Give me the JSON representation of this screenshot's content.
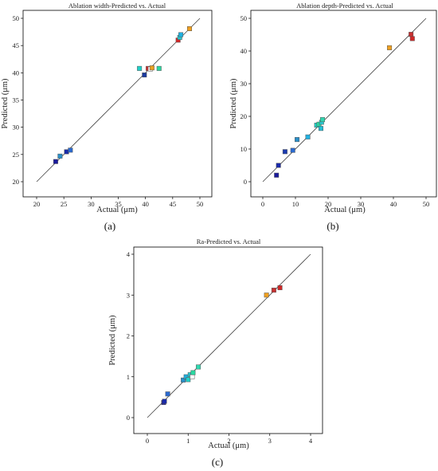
{
  "chart_data": [
    {
      "type": "scatter",
      "panel_label": "(a)",
      "title": "Ablation width-Predicted vs. Actual",
      "xlabel": "Actual (μm)",
      "ylabel": "Predicted (μm)",
      "xlim": [
        20,
        50
      ],
      "ylim": [
        20,
        50
      ],
      "xticks": [
        "20",
        "25",
        "30",
        "35",
        "40",
        "45",
        "50"
      ],
      "yticks": [
        "20",
        "25",
        "30",
        "35",
        "40",
        "45",
        "50"
      ],
      "grid": false,
      "reference_line": [
        [
          20,
          20
        ],
        [
          50,
          50
        ]
      ],
      "points": [
        {
          "x": 23.5,
          "y": 23.7,
          "color": "#1a1a9c"
        },
        {
          "x": 24.3,
          "y": 24.7,
          "color": "#2a8fc8"
        },
        {
          "x": 25.5,
          "y": 25.5,
          "color": "#1a2aa8"
        },
        {
          "x": 26.2,
          "y": 25.8,
          "color": "#2a6ad0"
        },
        {
          "x": 38.9,
          "y": 40.8,
          "color": "#20d0c8"
        },
        {
          "x": 39.8,
          "y": 39.6,
          "color": "#1a3aa0"
        },
        {
          "x": 40.5,
          "y": 40.8,
          "color": "#c83030"
        },
        {
          "x": 40.9,
          "y": 40.7,
          "color": "#ffffff"
        },
        {
          "x": 41.2,
          "y": 40.9,
          "color": "#e8a020"
        },
        {
          "x": 42.5,
          "y": 40.8,
          "color": "#2ad8a0"
        },
        {
          "x": 46.0,
          "y": 46.0,
          "color": "#d02828"
        },
        {
          "x": 46.3,
          "y": 46.5,
          "color": "#28c8d0"
        },
        {
          "x": 46.5,
          "y": 47.0,
          "color": "#20b0e0"
        },
        {
          "x": 48.1,
          "y": 48.1,
          "color": "#f0a020"
        }
      ]
    },
    {
      "type": "scatter",
      "panel_label": "(b)",
      "title": "Ablation depth-Predicted vs. Actual",
      "xlabel": "Actual (μm)",
      "ylabel": "Predicted (μm)",
      "xlim": [
        0,
        50
      ],
      "ylim": [
        0,
        50
      ],
      "xticks": [
        "0",
        "10",
        "20",
        "30",
        "40",
        "50"
      ],
      "yticks": [
        "0",
        "10",
        "20",
        "30",
        "40",
        "50"
      ],
      "grid": false,
      "reference_line": [
        [
          0,
          0
        ],
        [
          50,
          50
        ]
      ],
      "points": [
        {
          "x": 4.2,
          "y": 2.0,
          "color": "#1a1a9c"
        },
        {
          "x": 4.8,
          "y": 5.0,
          "color": "#1a2aa8"
        },
        {
          "x": 6.8,
          "y": 9.2,
          "color": "#1a3ab0"
        },
        {
          "x": 9.2,
          "y": 9.6,
          "color": "#2a6ad0"
        },
        {
          "x": 10.5,
          "y": 12.9,
          "color": "#2a8fc8"
        },
        {
          "x": 13.8,
          "y": 13.7,
          "color": "#20b0e0"
        },
        {
          "x": 16.5,
          "y": 17.3,
          "color": "#20d0c8"
        },
        {
          "x": 17.2,
          "y": 17.6,
          "color": "#2ad8a0"
        },
        {
          "x": 17.8,
          "y": 16.3,
          "color": "#20c0d8"
        },
        {
          "x": 18.0,
          "y": 18.2,
          "color": "#28c8d0"
        },
        {
          "x": 18.3,
          "y": 19.0,
          "color": "#30d8b0"
        },
        {
          "x": 38.8,
          "y": 41.0,
          "color": "#f0a020"
        },
        {
          "x": 45.4,
          "y": 45.1,
          "color": "#c83030"
        },
        {
          "x": 45.8,
          "y": 43.8,
          "color": "#d02828"
        }
      ]
    },
    {
      "type": "scatter",
      "panel_label": "(c)",
      "title": "Ra-Predicted vs. Actual",
      "xlabel": "Actual (μm)",
      "ylabel": "Predicted (μm)",
      "xlim": [
        0,
        4
      ],
      "ylim": [
        0,
        4
      ],
      "xticks": [
        "0",
        "1",
        "2",
        "3",
        "4"
      ],
      "yticks": [
        "0",
        "1",
        "2",
        "3",
        "4"
      ],
      "grid": false,
      "reference_line": [
        [
          0,
          0
        ],
        [
          4,
          4
        ]
      ],
      "points": [
        {
          "x": 0.4,
          "y": 0.37,
          "color": "#1a1a9c"
        },
        {
          "x": 0.42,
          "y": 0.4,
          "color": "#1a2aa8"
        },
        {
          "x": 0.5,
          "y": 0.58,
          "color": "#2a6ad0"
        },
        {
          "x": 0.88,
          "y": 0.92,
          "color": "#2a8fc8"
        },
        {
          "x": 0.95,
          "y": 1.0,
          "color": "#20b0e0"
        },
        {
          "x": 1.0,
          "y": 0.93,
          "color": "#20d0c8"
        },
        {
          "x": 1.05,
          "y": 1.05,
          "color": "#28c8d0"
        },
        {
          "x": 1.1,
          "y": 1.0,
          "color": "#ffffff"
        },
        {
          "x": 1.12,
          "y": 1.1,
          "color": "#2ad8a0"
        },
        {
          "x": 1.25,
          "y": 1.24,
          "color": "#30d8b0"
        },
        {
          "x": 2.92,
          "y": 3.0,
          "color": "#f0a020"
        },
        {
          "x": 3.1,
          "y": 3.12,
          "color": "#c83030"
        },
        {
          "x": 3.25,
          "y": 3.18,
          "color": "#d02828"
        }
      ]
    }
  ]
}
